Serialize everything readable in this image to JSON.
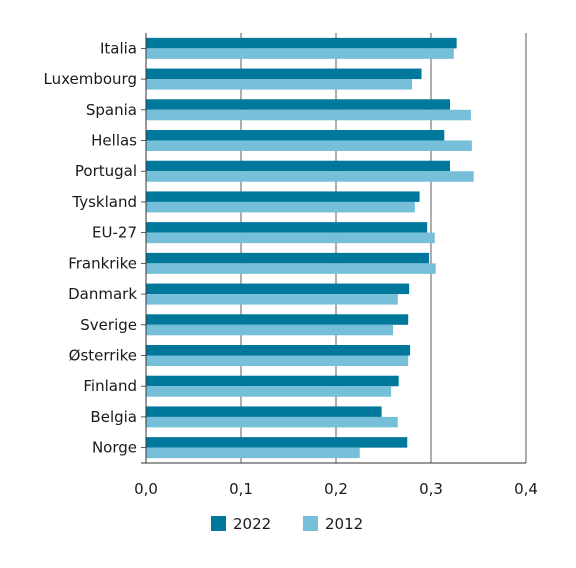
{
  "chart_data": {
    "type": "bar",
    "orientation": "horizontal",
    "categories": [
      "Italia",
      "Luxembourg",
      "Spania",
      "Hellas",
      "Portugal",
      "Tyskland",
      "EU-27",
      "Frankrike",
      "Danmark",
      "Sverige",
      "Østerrike",
      "Finland",
      "Belgia",
      "Norge"
    ],
    "series": [
      {
        "name": "2022",
        "color": "#00789c",
        "values": [
          0.327,
          0.29,
          0.32,
          0.314,
          0.32,
          0.288,
          0.296,
          0.298,
          0.277,
          0.276,
          0.278,
          0.266,
          0.248,
          0.275
        ]
      },
      {
        "name": "2012",
        "color": "#76bfd8",
        "values": [
          0.324,
          0.28,
          0.342,
          0.343,
          0.345,
          0.283,
          0.304,
          0.305,
          0.265,
          0.26,
          0.276,
          0.258,
          0.265,
          0.225
        ]
      }
    ],
    "x_ticks": [
      "0,0",
      "0,1",
      "0,2",
      "0,3",
      "0,4"
    ],
    "x_tick_values": [
      0,
      0.1,
      0.2,
      0.3,
      0.4
    ],
    "xlim": [
      0,
      0.4
    ],
    "title": "",
    "xlabel": "",
    "ylabel": "",
    "grid": "vertical",
    "legend_position": "bottom-center"
  }
}
